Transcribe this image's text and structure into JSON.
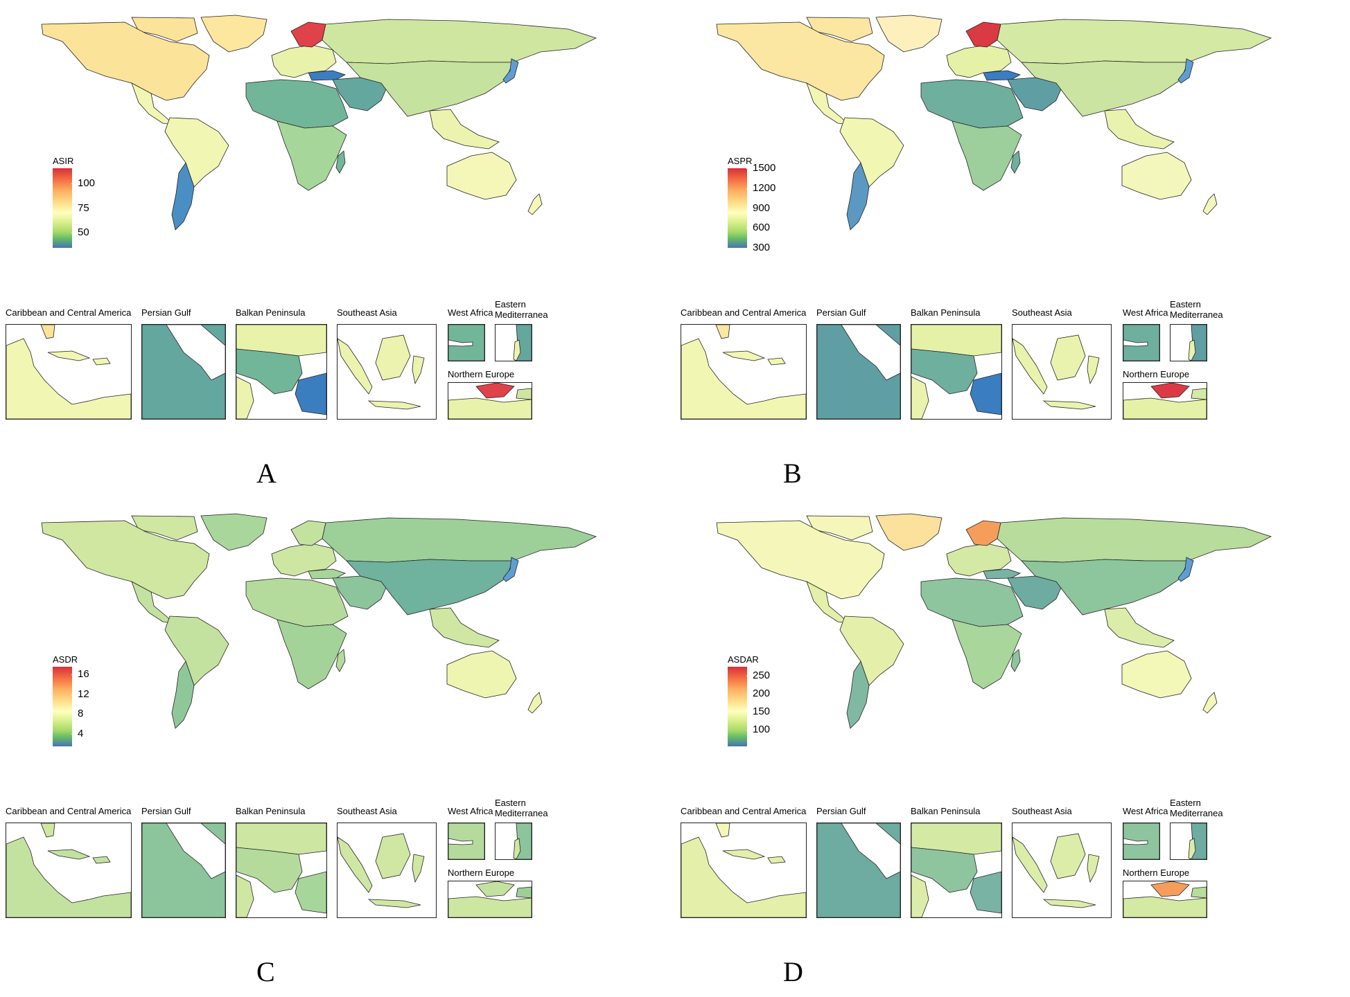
{
  "panels": [
    {
      "letter": "A",
      "legend": {
        "title": "ASIR",
        "ticks": [
          "100",
          "75",
          "50"
        ],
        "range": [
          35,
          115
        ]
      },
      "colors": {
        "north_america": "#fbe39a",
        "greenland": "#fde69e",
        "south_america": "#f2f6b3",
        "argentina": "#4a8fc4",
        "europe": "#e8f2aa",
        "scandinavia": "#e0424a",
        "russia": "#cfe6a0",
        "africa_north": "#72b69a",
        "africa_south": "#a7d69a",
        "middle_east": "#64a79f",
        "asia": "#c6e29f",
        "se_asia": "#ecf3ae",
        "australia": "#f4f7b8",
        "turkey": "#3b7ec0",
        "japan": "#5e9ed4"
      }
    },
    {
      "letter": "B",
      "legend": {
        "title": "ASPR",
        "ticks": [
          "1500",
          "1200",
          "900",
          "600",
          "300"
        ],
        "range": [
          300,
          1500
        ]
      },
      "colors": {
        "north_america": "#fbe6a2",
        "greenland": "#fdf0bc",
        "south_america": "#f2f6b3",
        "argentina": "#5b99c3",
        "europe": "#e6f1a8",
        "scandinavia": "#db3a44",
        "russia": "#d4e9a4",
        "africa_north": "#6faf9e",
        "africa_south": "#9ccf9b",
        "middle_east": "#5f9fa3",
        "asia": "#cbe4a2",
        "se_asia": "#eaf3ad",
        "australia": "#f4f7bc",
        "turkey": "#3a7dc0",
        "japan": "#5e9ed4"
      }
    },
    {
      "letter": "C",
      "legend": {
        "title": "ASDR",
        "ticks": [
          "16",
          "12",
          "8",
          "4"
        ],
        "range": [
          1.5,
          17.5
        ]
      },
      "colors": {
        "north_america": "#cfe7a1",
        "greenland": "#a9d69a",
        "south_america": "#c3e29f",
        "argentina": "#8ec89a",
        "europe": "#cde6a2",
        "scandinavia": "#c4e29f",
        "russia": "#9dcf99",
        "africa_north": "#b5db9c",
        "africa_south": "#a4d39a",
        "middle_east": "#8cc49c",
        "asia": "#6fb29e",
        "se_asia": "#cfe7a3",
        "australia": "#eef5b0",
        "turkey": "#a7d69a",
        "japan": "#5e9ed4"
      }
    },
    {
      "letter": "D",
      "legend": {
        "title": "ASDAR",
        "ticks": [
          "250",
          "200",
          "150",
          "100"
        ],
        "range": [
          55,
          275
        ]
      },
      "colors": {
        "north_america": "#f4f7b9",
        "greenland": "#fbe19b",
        "south_america": "#e4f0a9",
        "argentina": "#7fb9a1",
        "europe": "#d4e9a4",
        "scandinavia": "#f59e5b",
        "russia": "#b8dc9c",
        "africa_north": "#8ec59e",
        "africa_south": "#a9d69b",
        "middle_east": "#6eaba0",
        "asia": "#8dc59c",
        "se_asia": "#dcedaa",
        "australia": "#f3f7b8",
        "turkey": "#78b3a4",
        "japan": "#5e9ed4"
      }
    }
  ],
  "insets": {
    "caribbean": "Caribbean and Central America",
    "persian_gulf": "Persian Gulf",
    "balkan": "Balkan Peninsula",
    "se_asia": "Southeast Asia",
    "west_africa": "West Africa",
    "east_med": "Eastern Mediterranea",
    "n_europe": "Northern Europe"
  }
}
